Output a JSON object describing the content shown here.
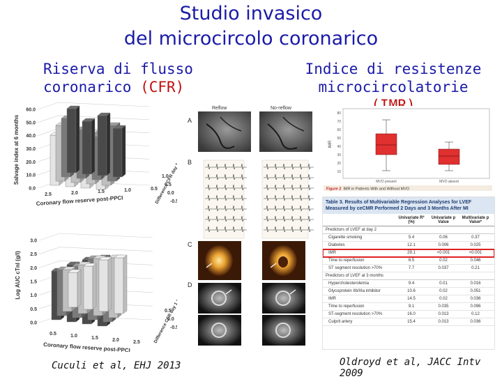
{
  "slide": {
    "title_line1": "Studio invasico",
    "title_line2": "del microcircolo coronarico",
    "left_heading_line1": "Riserva di flusso",
    "left_heading_line2_prefix": "coronarico ",
    "left_heading_line2_accent": "(CFR)",
    "right_heading_line1": "Indice di resistenze",
    "right_heading_line2_prefix": "microcircolatorie ",
    "right_heading_line2_accent": "(IMR)",
    "left_citation": "Cuculi et al, EHJ 2013",
    "right_citation": "Oldroyd et al, JACC Intv 2009"
  },
  "left_figure_top": {
    "ylabel": "Salvage index at 6 months",
    "yticks": [
      "60.0",
      "50.0",
      "40.0",
      "30.0",
      "20.0",
      "10.0",
      "0.0"
    ],
    "xlabel": "Coronary flow reserve post-PPCI",
    "xticks": [
      "2.5",
      "2.0",
      "1.5",
      "1.0",
      "0.5"
    ],
    "zlabel": "Difference CFR day 1 and post-PPCI",
    "zticks": [
      "1.0",
      "0.5",
      "0.0",
      "-0.5"
    ]
  },
  "left_figure_bottom": {
    "ylabel": "Log AUC cTnI (g/l)",
    "yticks": [
      "3.0",
      "2.5",
      "2.0",
      "1.5",
      "1.0",
      "0.5",
      "0.0"
    ],
    "xlabel": "Coronary flow reserve post-PPCI",
    "xticks": [
      "0.5",
      "1.0",
      "1.5",
      "2.0",
      "2.5"
    ],
    "zlabel": "Difference CFR day 1 and post-PPCI",
    "zticks": [
      "0.5",
      "0.0",
      "-0.5"
    ]
  },
  "middle_figure": {
    "col1_label": "Reflow",
    "col2_label": "No-reflow",
    "panels": [
      "A",
      "B",
      "C",
      "D"
    ]
  },
  "boxplot": {
    "yticks": [
      "80",
      "70",
      "60",
      "50",
      "40",
      "30",
      "20",
      "10"
    ],
    "ylabel": "IMR",
    "xlabels": [
      "MVO present",
      "MVO absent"
    ],
    "caption_prefix": "Figure 2",
    "caption_text": "IMR in Patients With and Without MVO",
    "colors": {
      "box": "#e03030",
      "frame": "#999999"
    }
  },
  "table": {
    "title": "Table 3. Results of Multivariable Regression Analyses for LVEF Measured by ceCMR Performed 2 Days and 3 Months After MI",
    "col_headers": [
      "Univariate R² (%)",
      "Univariate p Value",
      "Multivariate p Value*"
    ],
    "section1": "Predictors of LVEF at day 2",
    "section2": "Predictors of LVEF at 3 months",
    "rows1": [
      {
        "label": "Cigarette smoking",
        "r2": "5.4",
        "p": "0.06",
        "mp": "0.37"
      },
      {
        "label": "Diabetes",
        "r2": "12.1",
        "p": "0.006",
        "mp": "0.025"
      },
      {
        "label": "IMR",
        "r2": "29.1",
        "p": "<0.001",
        "mp": "<0.001"
      },
      {
        "label": "Time to reperfusion",
        "r2": "6.5",
        "p": "0.02",
        "mp": "0.046"
      },
      {
        "label": "ST segment resolution >70%",
        "r2": "7.7",
        "p": "0.037",
        "mp": "0.21"
      }
    ],
    "rows2": [
      {
        "label": "Hypercholesterolemia",
        "r2": "9.4",
        "p": "0.01",
        "mp": "0.016"
      },
      {
        "label": "Glycoprotein IIb/IIIa inhibitor",
        "r2": "10.6",
        "p": "0.02",
        "mp": "0.051"
      },
      {
        "label": "IMR",
        "r2": "14.5",
        "p": "0.02",
        "mp": "0.036"
      },
      {
        "label": "Time to reperfusion",
        "r2": "9.1",
        "p": "0.035",
        "mp": "0.096"
      },
      {
        "label": "ST-segment resolution >70%",
        "r2": "16.0",
        "p": "0.013",
        "mp": "0.12"
      },
      {
        "label": "Culprit artery",
        "r2": "15.4",
        "p": "0.013",
        "mp": "0.036"
      }
    ],
    "colors": {
      "header_bg": "#dbe6f2",
      "title_color": "#1f3b73",
      "highlight": "#e02020"
    }
  }
}
